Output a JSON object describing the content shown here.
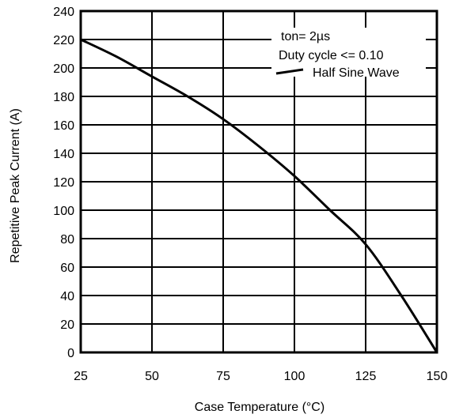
{
  "chart_data": {
    "type": "line",
    "xlabel": "Case Temperature (°C)",
    "ylabel": "Repetitive Peak Current (A)",
    "xlim": [
      25,
      150
    ],
    "ylim": [
      0,
      240
    ],
    "x_ticks": [
      25,
      50,
      75,
      100,
      125,
      150
    ],
    "y_ticks": [
      0,
      20,
      40,
      60,
      80,
      100,
      120,
      140,
      160,
      180,
      200,
      220,
      240
    ],
    "grid": true,
    "series": [
      {
        "name": "Half Sine Wave",
        "x": [
          25,
          37.5,
          50,
          62.5,
          75,
          87.5,
          100,
          112.5,
          125,
          137.5,
          150
        ],
        "y": [
          220,
          208,
          194,
          180,
          164,
          145,
          124,
          100,
          76,
          40,
          0
        ]
      }
    ],
    "annotations": [
      "ton= 2µs",
      "Duty cycle <= 0.10"
    ]
  }
}
